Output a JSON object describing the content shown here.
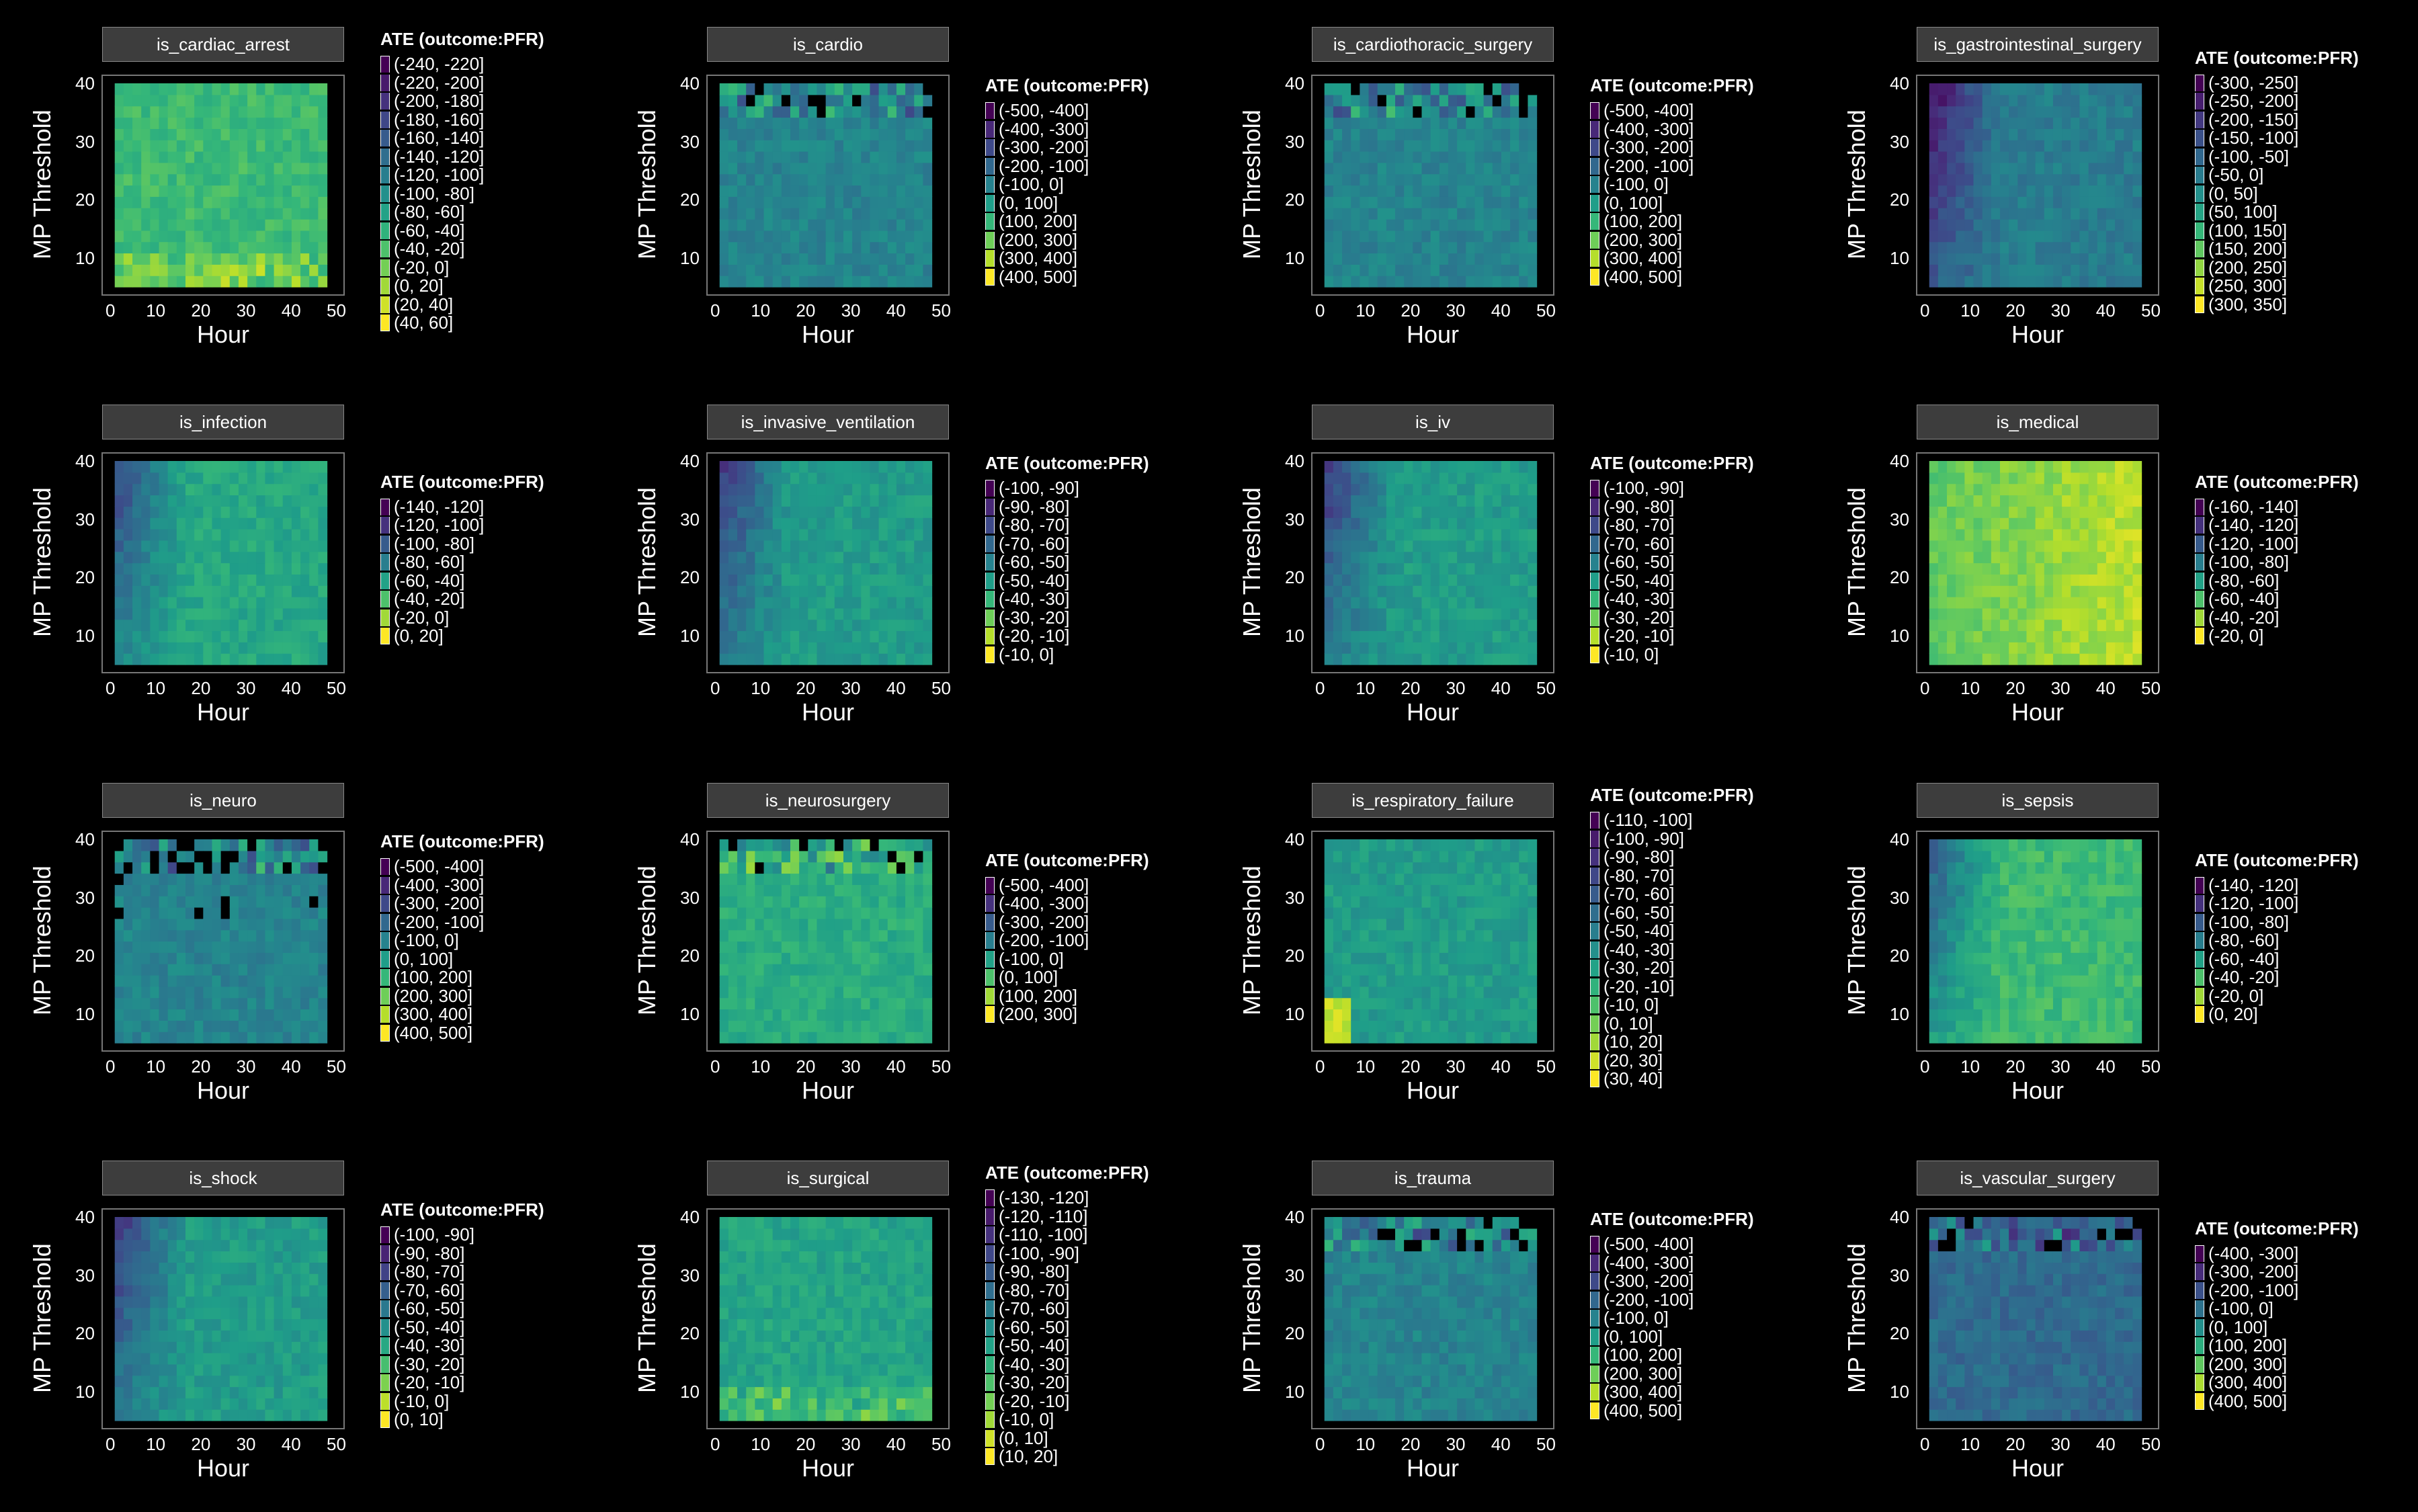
{
  "chart_data": [
    {
      "type": "heatmap",
      "title": "is_cardiac_arrest",
      "xlabel": "Hour",
      "ylabel": "MP Threshold",
      "xlim": [
        0,
        50
      ],
      "ylim": [
        5,
        40
      ],
      "xticks": [
        "0",
        "10",
        "20",
        "30",
        "40",
        "50"
      ],
      "yticks": [
        "10",
        "20",
        "30",
        "40"
      ],
      "legend_title": "ATE (outcome:PFR)",
      "legend": [
        "(-240, -220]",
        "(-220, -200]",
        "(-200, -180]",
        "(-180, -160]",
        "(-160, -140]",
        "(-140, -120]",
        "(-120, -100]",
        "(-100, -80]",
        "(-80, -60]",
        "(-60, -40]",
        "(-40, -20]",
        "(-20, 0]",
        "(0, 20]",
        "(20, 40]",
        "(40, 60]"
      ],
      "base_level": 0.68,
      "pattern": "bright_bottom_band"
    },
    {
      "type": "heatmap",
      "title": "is_cardio",
      "xlabel": "Hour",
      "ylabel": "MP Threshold",
      "xlim": [
        0,
        50
      ],
      "ylim": [
        5,
        40
      ],
      "xticks": [
        "0",
        "10",
        "20",
        "30",
        "40",
        "50"
      ],
      "yticks": [
        "10",
        "20",
        "30",
        "40"
      ],
      "legend_title": "ATE (outcome:PFR)",
      "legend": [
        "(-500, -400]",
        "(-400, -300]",
        "(-300, -200]",
        "(-200, -100]",
        "(-100, 0]",
        "(0, 100]",
        "(100, 200]",
        "(200, 300]",
        "(300, 400]",
        "(400, 500]"
      ],
      "base_level": 0.45,
      "pattern": "top_noise"
    },
    {
      "type": "heatmap",
      "title": "is_cardiothoracic_surgery",
      "xlabel": "Hour",
      "ylabel": "MP Threshold",
      "xlim": [
        0,
        50
      ],
      "ylim": [
        5,
        40
      ],
      "xticks": [
        "0",
        "10",
        "20",
        "30",
        "40",
        "50"
      ],
      "yticks": [
        "10",
        "20",
        "30",
        "40"
      ],
      "legend_title": "ATE (outcome:PFR)",
      "legend": [
        "(-500, -400]",
        "(-400, -300]",
        "(-300, -200]",
        "(-200, -100]",
        "(-100, 0]",
        "(0, 100]",
        "(100, 200]",
        "(200, 300]",
        "(300, 400]",
        "(400, 500]"
      ],
      "base_level": 0.45,
      "pattern": "top_noise"
    },
    {
      "type": "heatmap",
      "title": "is_gastrointestinal_surgery",
      "xlabel": "Hour",
      "ylabel": "MP Threshold",
      "xlim": [
        0,
        50
      ],
      "ylim": [
        5,
        40
      ],
      "xticks": [
        "0",
        "10",
        "20",
        "30",
        "40",
        "50"
      ],
      "yticks": [
        "10",
        "20",
        "30",
        "40"
      ],
      "legend_title": "ATE (outcome:PFR)",
      "legend": [
        "(-300, -250]",
        "(-250, -200]",
        "(-200, -150]",
        "(-150, -100]",
        "(-100, -50]",
        "(-50, 0]",
        "(0, 50]",
        "(50, 100]",
        "(100, 150]",
        "(150, 200]",
        "(200, 250]",
        "(250, 300]",
        "(300, 350]"
      ],
      "base_level": 0.42,
      "pattern": "left_dark"
    },
    {
      "type": "heatmap",
      "title": "is_infection",
      "xlabel": "Hour",
      "ylabel": "MP Threshold",
      "xlim": [
        0,
        50
      ],
      "ylim": [
        5,
        40
      ],
      "xticks": [
        "0",
        "10",
        "20",
        "30",
        "40",
        "50"
      ],
      "yticks": [
        "10",
        "20",
        "30",
        "40"
      ],
      "legend_title": "ATE (outcome:PFR)",
      "legend": [
        "(-140, -120]",
        "(-120, -100]",
        "(-100, -80]",
        "(-80, -60]",
        "(-60, -40]",
        "(-40, -20]",
        "(-20, 0]",
        "(0, 20]"
      ],
      "base_level": 0.6,
      "pattern": "left_dark"
    },
    {
      "type": "heatmap",
      "title": "is_invasive_ventilation",
      "xlabel": "Hour",
      "ylabel": "MP Threshold",
      "xlim": [
        0,
        50
      ],
      "ylim": [
        5,
        40
      ],
      "xticks": [
        "0",
        "10",
        "20",
        "30",
        "40",
        "50"
      ],
      "yticks": [
        "10",
        "20",
        "30",
        "40"
      ],
      "legend_title": "ATE (outcome:PFR)",
      "legend": [
        "(-100, -90]",
        "(-90, -80]",
        "(-80, -70]",
        "(-70, -60]",
        "(-60, -50]",
        "(-50, -40]",
        "(-40, -30]",
        "(-30, -20]",
        "(-20, -10]",
        "(-10, 0]"
      ],
      "base_level": 0.55,
      "pattern": "left_dark"
    },
    {
      "type": "heatmap",
      "title": "is_iv",
      "xlabel": "Hour",
      "ylabel": "MP Threshold",
      "xlim": [
        0,
        50
      ],
      "ylim": [
        5,
        40
      ],
      "xticks": [
        "0",
        "10",
        "20",
        "30",
        "40",
        "50"
      ],
      "yticks": [
        "10",
        "20",
        "30",
        "40"
      ],
      "legend_title": "ATE (outcome:PFR)",
      "legend": [
        "(-100, -90]",
        "(-90, -80]",
        "(-80, -70]",
        "(-70, -60]",
        "(-60, -50]",
        "(-50, -40]",
        "(-40, -30]",
        "(-30, -20]",
        "(-20, -10]",
        "(-10, 0]"
      ],
      "base_level": 0.55,
      "pattern": "left_dark"
    },
    {
      "type": "heatmap",
      "title": "is_medical",
      "xlabel": "Hour",
      "ylabel": "MP Threshold",
      "xlim": [
        0,
        50
      ],
      "ylim": [
        5,
        40
      ],
      "xticks": [
        "0",
        "10",
        "20",
        "30",
        "40",
        "50"
      ],
      "yticks": [
        "10",
        "20",
        "30",
        "40"
      ],
      "legend_title": "ATE (outcome:PFR)",
      "legend": [
        "(-160, -140]",
        "(-140, -120]",
        "(-120, -100]",
        "(-100, -80]",
        "(-80, -60]",
        "(-60, -40]",
        "(-40, -20]",
        "(-20, 0]"
      ],
      "base_level": 0.75,
      "pattern": "right_bright"
    },
    {
      "type": "heatmap",
      "title": "is_neuro",
      "xlabel": "Hour",
      "ylabel": "MP Threshold",
      "xlim": [
        0,
        50
      ],
      "ylim": [
        5,
        40
      ],
      "xticks": [
        "0",
        "10",
        "20",
        "30",
        "40",
        "50"
      ],
      "yticks": [
        "10",
        "20",
        "30",
        "40"
      ],
      "legend_title": "ATE (outcome:PFR)",
      "legend": [
        "(-500, -400]",
        "(-400, -300]",
        "(-300, -200]",
        "(-200, -100]",
        "(-100, 0]",
        "(0, 100]",
        "(100, 200]",
        "(200, 300]",
        "(300, 400]",
        "(400, 500]"
      ],
      "base_level": 0.45,
      "pattern": "top_noise_heavy"
    },
    {
      "type": "heatmap",
      "title": "is_neurosurgery",
      "xlabel": "Hour",
      "ylabel": "MP Threshold",
      "xlim": [
        0,
        50
      ],
      "ylim": [
        5,
        40
      ],
      "xticks": [
        "0",
        "10",
        "20",
        "30",
        "40",
        "50"
      ],
      "yticks": [
        "10",
        "20",
        "30",
        "40"
      ],
      "legend_title": "ATE (outcome:PFR)",
      "legend": [
        "(-500, -400]",
        "(-400, -300]",
        "(-300, -200]",
        "(-200, -100]",
        "(-100, 0]",
        "(0, 100]",
        "(100, 200]",
        "(200, 300]"
      ],
      "base_level": 0.62,
      "pattern": "top_noise"
    },
    {
      "type": "heatmap",
      "title": "is_respiratory_failure",
      "xlabel": "Hour",
      "ylabel": "MP Threshold",
      "xlim": [
        0,
        50
      ],
      "ylim": [
        5,
        40
      ],
      "xticks": [
        "0",
        "10",
        "20",
        "30",
        "40",
        "50"
      ],
      "yticks": [
        "10",
        "20",
        "30",
        "40"
      ],
      "legend_title": "ATE (outcome:PFR)",
      "legend": [
        "(-110, -100]",
        "(-100, -90]",
        "(-90, -80]",
        "(-80, -70]",
        "(-70, -60]",
        "(-60, -50]",
        "(-50, -40]",
        "(-40, -30]",
        "(-30, -20]",
        "(-20, -10]",
        "(-10, 0]",
        "(0, 10]",
        "(10, 20]",
        "(20, 30]",
        "(30, 40]"
      ],
      "base_level": 0.55,
      "pattern": "bright_corner"
    },
    {
      "type": "heatmap",
      "title": "is_sepsis",
      "xlabel": "Hour",
      "ylabel": "MP Threshold",
      "xlim": [
        0,
        50
      ],
      "ylim": [
        5,
        40
      ],
      "xticks": [
        "0",
        "10",
        "20",
        "30",
        "40",
        "50"
      ],
      "yticks": [
        "10",
        "20",
        "30",
        "40"
      ],
      "legend_title": "ATE (outcome:PFR)",
      "legend": [
        "(-140, -120]",
        "(-120, -100]",
        "(-100, -80]",
        "(-80, -60]",
        "(-60, -40]",
        "(-40, -20]",
        "(-20, 0]",
        "(0, 20]"
      ],
      "base_level": 0.68,
      "pattern": "left_dark"
    },
    {
      "type": "heatmap",
      "title": "is_shock",
      "xlabel": "Hour",
      "ylabel": "MP Threshold",
      "xlim": [
        0,
        50
      ],
      "ylim": [
        5,
        40
      ],
      "xticks": [
        "0",
        "10",
        "20",
        "30",
        "40",
        "50"
      ],
      "yticks": [
        "10",
        "20",
        "30",
        "40"
      ],
      "legend_title": "ATE (outcome:PFR)",
      "legend": [
        "(-100, -90]",
        "(-90, -80]",
        "(-80, -70]",
        "(-70, -60]",
        "(-60, -50]",
        "(-50, -40]",
        "(-40, -30]",
        "(-30, -20]",
        "(-20, -10]",
        "(-10, 0]",
        "(0, 10]"
      ],
      "base_level": 0.55,
      "pattern": "left_dark"
    },
    {
      "type": "heatmap",
      "title": "is_surgical",
      "xlabel": "Hour",
      "ylabel": "MP Threshold",
      "xlim": [
        0,
        50
      ],
      "ylim": [
        5,
        40
      ],
      "xticks": [
        "0",
        "10",
        "20",
        "30",
        "40",
        "50"
      ],
      "yticks": [
        "10",
        "20",
        "30",
        "40"
      ],
      "legend_title": "ATE (outcome:PFR)",
      "legend": [
        "(-130, -120]",
        "(-120, -110]",
        "(-110, -100]",
        "(-100, -90]",
        "(-90, -80]",
        "(-80, -70]",
        "(-70, -60]",
        "(-60, -50]",
        "(-50, -40]",
        "(-40, -30]",
        "(-30, -20]",
        "(-20, -10]",
        "(-10, 0]",
        "(0, 10]",
        "(10, 20]"
      ],
      "base_level": 0.58,
      "pattern": "bright_bottom_band"
    },
    {
      "type": "heatmap",
      "title": "is_trauma",
      "xlabel": "Hour",
      "ylabel": "MP Threshold",
      "xlim": [
        0,
        50
      ],
      "ylim": [
        5,
        40
      ],
      "xticks": [
        "0",
        "10",
        "20",
        "30",
        "40",
        "50"
      ],
      "yticks": [
        "10",
        "20",
        "30",
        "40"
      ],
      "legend_title": "ATE (outcome:PFR)",
      "legend": [
        "(-500, -400]",
        "(-400, -300]",
        "(-300, -200]",
        "(-200, -100]",
        "(-100, 0]",
        "(0, 100]",
        "(100, 200]",
        "(200, 300]",
        "(300, 400]",
        "(400, 500]"
      ],
      "base_level": 0.45,
      "pattern": "top_noise"
    },
    {
      "type": "heatmap",
      "title": "is_vascular_surgery",
      "xlabel": "Hour",
      "ylabel": "MP Threshold",
      "xlim": [
        0,
        50
      ],
      "ylim": [
        5,
        40
      ],
      "xticks": [
        "0",
        "10",
        "20",
        "30",
        "40",
        "50"
      ],
      "yticks": [
        "10",
        "20",
        "30",
        "40"
      ],
      "legend_title": "ATE (outcome:PFR)",
      "legend": [
        "(-400, -300]",
        "(-300, -200]",
        "(-200, -100]",
        "(-100, 0]",
        "(0, 100]",
        "(100, 200]",
        "(200, 300]",
        "(300, 400]",
        "(400, 500]"
      ],
      "base_level": 0.35,
      "pattern": "top_noise"
    }
  ]
}
